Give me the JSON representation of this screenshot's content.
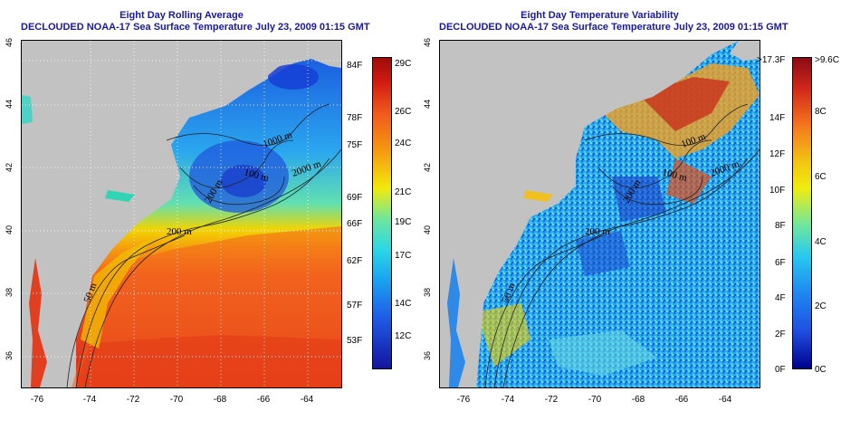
{
  "left_panel": {
    "title_line1": "Eight Day Rolling Average",
    "title_line2": "DECLOUDED NOAA-17 Sea Surface Temperature July 23, 2009 01:15 GMT",
    "colorbar_f": [
      "84F",
      "78F",
      "75F",
      "69F",
      "66F",
      "62F",
      "57F",
      "53F"
    ],
    "colorbar_c": [
      "29C",
      "26C",
      "24C",
      "21C",
      "19C",
      "17C",
      "14C",
      "12C"
    ],
    "contour_labels": [
      "1000 m",
      "2000 m",
      "100 m",
      "200 m",
      "200 m",
      "50 m"
    ]
  },
  "right_panel": {
    "title_line1": "Eight Day Temperature Variability",
    "title_line2": "DECLOUDED NOAA-17 Sea Surface Temperature July 23, 2009 01:15 GMT",
    "colorbar_f": [
      ">17.3F",
      "14F",
      "12F",
      "10F",
      "8F",
      "6F",
      "4F",
      "2F",
      "0F"
    ],
    "colorbar_c": [
      ">9.6C",
      "8C",
      "6C",
      "4C",
      "2C",
      "0C"
    ],
    "contour_labels": [
      "100 m",
      "2000 m",
      "100 m",
      "200 m",
      "200 m",
      "50 m"
    ]
  },
  "axes": {
    "lat_ticks": [
      "46",
      "44",
      "42",
      "40",
      "38",
      "36"
    ],
    "lon_ticks": [
      "-76",
      "-74",
      "-72",
      "-70",
      "-68",
      "-66",
      "-64"
    ]
  },
  "colors": {
    "title": "#1a1aa6",
    "land": "#c2c2c2",
    "sst_scale": [
      "#0a0a8c",
      "#1f4fe0",
      "#1aa8f0",
      "#2ee6d6",
      "#f2f20a",
      "#f7a600",
      "#f2561a",
      "#b30f0f"
    ],
    "variability_scale": [
      "#00008c",
      "#1f5fe6",
      "#28c8f0",
      "#f0e60a",
      "#f5781e",
      "#a8141e"
    ]
  }
}
